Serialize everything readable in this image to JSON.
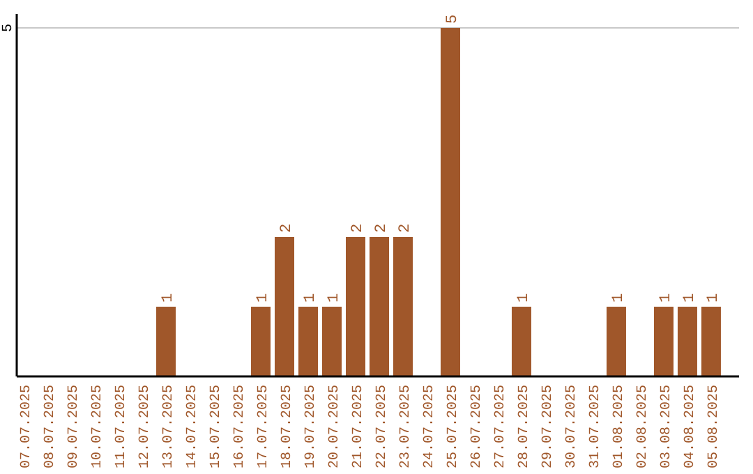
{
  "chart_data": {
    "type": "bar",
    "categories": [
      "07.07.2025",
      "08.07.2025",
      "09.07.2025",
      "10.07.2025",
      "11.07.2025",
      "12.07.2025",
      "13.07.2025",
      "14.07.2025",
      "15.07.2025",
      "16.07.2025",
      "17.07.2025",
      "18.07.2025",
      "19.07.2025",
      "20.07.2025",
      "21.07.2025",
      "22.07.2025",
      "23.07.2025",
      "24.07.2025",
      "25.07.2025",
      "26.07.2025",
      "27.07.2025",
      "28.07.2025",
      "29.07.2025",
      "30.07.2025",
      "31.07.2025",
      "01.08.2025",
      "02.08.2025",
      "03.08.2025",
      "04.08.2025",
      "05.08.2025"
    ],
    "values": [
      0,
      0,
      0,
      0,
      0,
      0,
      1,
      0,
      0,
      0,
      1,
      2,
      1,
      1,
      2,
      2,
      2,
      0,
      5,
      0,
      0,
      1,
      0,
      0,
      0,
      1,
      0,
      1,
      1,
      1
    ],
    "value_labels": [
      null,
      null,
      null,
      null,
      null,
      null,
      "1",
      null,
      null,
      null,
      "1",
      "2",
      "1",
      "1",
      "2",
      "2",
      "2",
      null,
      "5",
      null,
      null,
      "1",
      null,
      null,
      null,
      "1",
      null,
      "1",
      "1",
      "1"
    ],
    "color": "#a0572a",
    "ylim": [
      0,
      5.2
    ],
    "yticks": [
      5
    ],
    "grid": "y"
  }
}
